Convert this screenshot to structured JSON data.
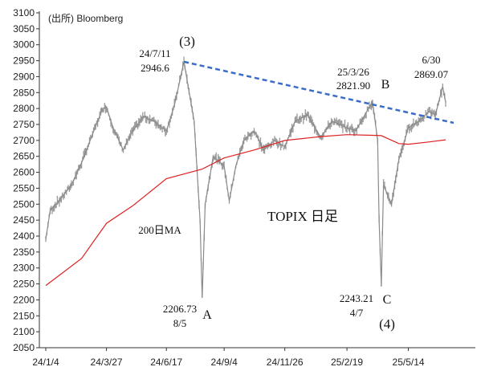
{
  "source_label": "(出所) Bloomberg",
  "chart_data": {
    "type": "line",
    "title": "TOPIX 日足",
    "ylim": [
      2050,
      3100
    ],
    "y_ticks": [
      2050,
      2100,
      2150,
      2200,
      2250,
      2300,
      2350,
      2400,
      2450,
      2500,
      2550,
      2600,
      2650,
      2700,
      2750,
      2800,
      2850,
      2900,
      2950,
      3000,
      3050,
      3100
    ],
    "x_ticks": [
      "24/1/4",
      "24/3/27",
      "24/6/17",
      "24/9/4",
      "24/11/26",
      "25/2/19",
      "25/5/14"
    ],
    "colors": {
      "price": "#9a9a9a",
      "ma": "#dd2222",
      "trend": "#3a6cc8",
      "ma_label": "#dd2222"
    },
    "series": [
      {
        "name": "TOPIX",
        "points": [
          [
            "24/1/4",
            2390
          ],
          [
            "24/1/10",
            2480
          ],
          [
            "24/1/24",
            2515
          ],
          [
            "24/2/8",
            2560
          ],
          [
            "24/2/22",
            2630
          ],
          [
            "24/3/8",
            2720
          ],
          [
            "24/3/22",
            2800
          ],
          [
            "24/3/27",
            2805
          ],
          [
            "24/4/5",
            2740
          ],
          [
            "24/4/19",
            2670
          ],
          [
            "24/5/2",
            2730
          ],
          [
            "24/5/17",
            2775
          ],
          [
            "24/5/31",
            2760
          ],
          [
            "24/6/17",
            2730
          ],
          [
            "24/6/28",
            2810
          ],
          [
            "24/7/11",
            2946.6
          ],
          [
            "24/7/25",
            2760
          ],
          [
            "24/8/2",
            2450
          ],
          [
            "24/8/5",
            2206.73
          ],
          [
            "24/8/9",
            2500
          ],
          [
            "24/8/20",
            2650
          ],
          [
            "24/9/4",
            2620
          ],
          [
            "24/9/11",
            2510
          ],
          [
            "24/9/20",
            2620
          ],
          [
            "24/10/1",
            2700
          ],
          [
            "24/10/15",
            2730
          ],
          [
            "24/10/28",
            2670
          ],
          [
            "24/11/12",
            2700
          ],
          [
            "24/11/26",
            2680
          ],
          [
            "24/12/10",
            2760
          ],
          [
            "24/12/27",
            2780
          ],
          [
            "25/1/14",
            2710
          ],
          [
            "25/1/30",
            2760
          ],
          [
            "25/2/19",
            2740
          ],
          [
            "25/3/3",
            2730
          ],
          [
            "25/3/26",
            2821.9
          ],
          [
            "25/4/2",
            2700
          ],
          [
            "25/4/4",
            2450
          ],
          [
            "25/4/7",
            2243.21
          ],
          [
            "25/4/10",
            2560
          ],
          [
            "25/4/21",
            2500
          ],
          [
            "25/5/1",
            2640
          ],
          [
            "25/5/14",
            2740
          ],
          [
            "25/5/28",
            2760
          ],
          [
            "25/6/11",
            2790
          ],
          [
            "25/6/20",
            2780
          ],
          [
            "25/6/30",
            2869.07
          ],
          [
            "25/7/4",
            2820
          ]
        ]
      },
      {
        "name": "200日MA",
        "points": [
          [
            "24/1/4",
            2245
          ],
          [
            "24/2/22",
            2330
          ],
          [
            "24/3/27",
            2440
          ],
          [
            "24/5/2",
            2495
          ],
          [
            "24/6/17",
            2580
          ],
          [
            "24/8/5",
            2610
          ],
          [
            "24/9/4",
            2645
          ],
          [
            "24/10/15",
            2670
          ],
          [
            "24/11/26",
            2700
          ],
          [
            "25/1/14",
            2712
          ],
          [
            "25/2/19",
            2718
          ],
          [
            "25/3/26",
            2716
          ],
          [
            "25/4/7",
            2715
          ],
          [
            "25/5/1",
            2690
          ],
          [
            "25/5/14",
            2688
          ],
          [
            "25/6/11",
            2695
          ],
          [
            "25/7/4",
            2702
          ]
        ]
      }
    ],
    "trendline": {
      "from": [
        "24/7/11",
        2946.6
      ],
      "to": [
        "25/7/15",
        2755
      ]
    },
    "annotations": [
      {
        "id": "peak-3",
        "text": "(3)"
      },
      {
        "id": "peak-3-date",
        "text": "24/7/11"
      },
      {
        "id": "peak-3-value",
        "text": "2946.6"
      },
      {
        "id": "low-a",
        "text": "A"
      },
      {
        "id": "low-a-value",
        "text": "2206.73"
      },
      {
        "id": "low-a-date",
        "text": "8/5"
      },
      {
        "id": "high-b",
        "text": "B"
      },
      {
        "id": "high-b-date",
        "text": "25/3/26"
      },
      {
        "id": "high-b-value",
        "text": "2821.90"
      },
      {
        "id": "low-c",
        "text": "C"
      },
      {
        "id": "low-c-value",
        "text": "2243.21"
      },
      {
        "id": "low-c-date",
        "text": "4/7"
      },
      {
        "id": "wave-4",
        "text": "(4)"
      },
      {
        "id": "last-date",
        "text": "6/30"
      },
      {
        "id": "last-value",
        "text": "2869.07"
      },
      {
        "id": "ma-label",
        "text": "200日MA"
      },
      {
        "id": "chart-title",
        "text": "TOPIX 日足"
      }
    ]
  }
}
